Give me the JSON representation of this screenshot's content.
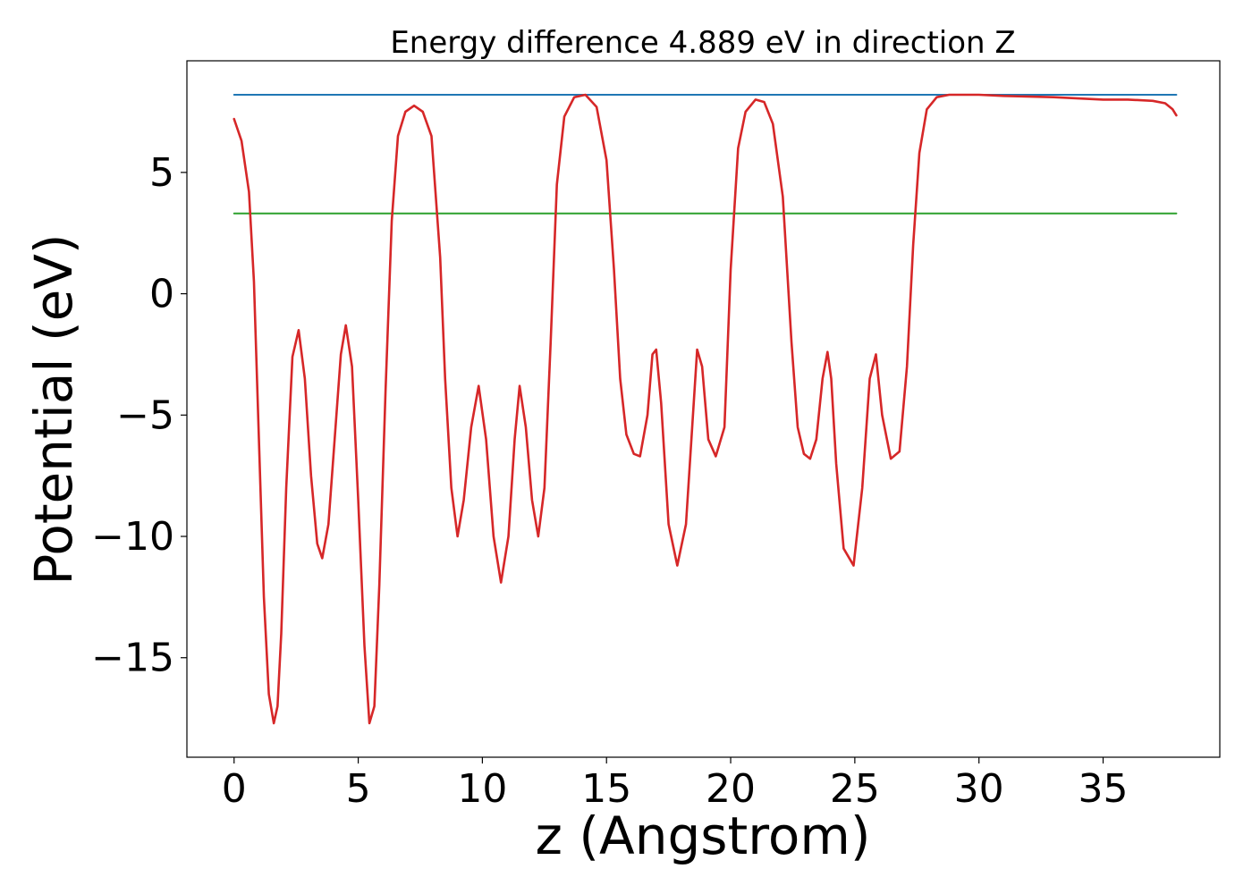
{
  "chart_data": {
    "type": "line",
    "title": "Energy difference 4.889 eV in direction Z",
    "xlabel": "z (Angstrom)",
    "ylabel": "Potential (eV)",
    "xlim": [
      -1.9,
      39.7
    ],
    "ylim": [
      -19.1,
      9.6
    ],
    "xticks": [
      0,
      5,
      10,
      15,
      20,
      25,
      30,
      35
    ],
    "yticks": [
      -15,
      -10,
      -5,
      0,
      5
    ],
    "grid": false,
    "legend": "none",
    "series": [
      {
        "color": "#d62728",
        "x": [
          0,
          0.3,
          0.6,
          0.8,
          1.0,
          1.2,
          1.4,
          1.6,
          1.75,
          1.9,
          2.1,
          2.35,
          2.6,
          2.85,
          3.1,
          3.35,
          3.55,
          3.8,
          4.05,
          4.3,
          4.5,
          4.75,
          5.0,
          5.25,
          5.45,
          5.65,
          5.85,
          6.1,
          6.35,
          6.6,
          6.9,
          7.25,
          7.6,
          7.95,
          8.3,
          8.5,
          8.75,
          9.0,
          9.25,
          9.55,
          9.85,
          10.15,
          10.45,
          10.75,
          11.05,
          11.3,
          11.5,
          11.75,
          12.0,
          12.25,
          12.5,
          12.75,
          13.0,
          13.3,
          13.7,
          14.15,
          14.6,
          15.0,
          15.3,
          15.55,
          15.8,
          16.1,
          16.35,
          16.65,
          16.85,
          17.0,
          17.2,
          17.5,
          17.85,
          18.2,
          18.45,
          18.65,
          18.85,
          19.1,
          19.4,
          19.75,
          20.0,
          20.3,
          20.6,
          21.0,
          21.35,
          21.7,
          22.1,
          22.45,
          22.7,
          22.95,
          23.2,
          23.45,
          23.7,
          23.9,
          24.05,
          24.25,
          24.55,
          24.95,
          25.3,
          25.6,
          25.85,
          26.1,
          26.45,
          26.8,
          27.1,
          27.35,
          27.6,
          27.9,
          28.3,
          28.8,
          29.5,
          30.0,
          31.0,
          33.0,
          35.0,
          36.0,
          37.0,
          37.5,
          37.8,
          37.95
        ],
        "values": [
          7.2,
          6.3,
          4.2,
          0.5,
          -6.0,
          -12.5,
          -16.5,
          -17.7,
          -17.0,
          -14.0,
          -8.0,
          -2.6,
          -1.5,
          -3.5,
          -7.5,
          -10.3,
          -10.9,
          -9.5,
          -6.0,
          -2.5,
          -1.3,
          -3.0,
          -8.5,
          -14.5,
          -17.7,
          -17.0,
          -12.0,
          -4.0,
          3.0,
          6.5,
          7.5,
          7.75,
          7.5,
          6.5,
          1.5,
          -3.5,
          -8.0,
          -10.0,
          -8.5,
          -5.5,
          -3.8,
          -6.0,
          -10.0,
          -11.9,
          -10.0,
          -6.0,
          -3.8,
          -5.5,
          -8.5,
          -10.0,
          -8.0,
          -2.0,
          4.5,
          7.3,
          8.1,
          8.2,
          7.7,
          5.5,
          1.0,
          -3.5,
          -5.8,
          -6.6,
          -6.7,
          -5.0,
          -2.5,
          -2.3,
          -4.5,
          -9.5,
          -11.2,
          -9.5,
          -5.5,
          -2.3,
          -3.0,
          -6.0,
          -6.7,
          -5.5,
          1.0,
          6.0,
          7.5,
          8.0,
          7.9,
          7.0,
          4.0,
          -2.0,
          -5.5,
          -6.6,
          -6.8,
          -6.0,
          -3.5,
          -2.4,
          -3.5,
          -7.0,
          -10.5,
          -11.2,
          -8.0,
          -3.5,
          -2.5,
          -5.0,
          -6.8,
          -6.5,
          -3.0,
          2.0,
          5.8,
          7.6,
          8.1,
          8.2,
          8.2,
          8.2,
          8.15,
          8.1,
          8.0,
          8.0,
          7.95,
          7.85,
          7.6,
          7.35
        ]
      },
      {
        "color": "#1f77b4",
        "x": [
          0,
          37.95
        ],
        "values": [
          8.2,
          8.2
        ]
      },
      {
        "color": "#2ca02c",
        "x": [
          0,
          37.95
        ],
        "values": [
          3.31,
          3.31
        ]
      }
    ]
  }
}
